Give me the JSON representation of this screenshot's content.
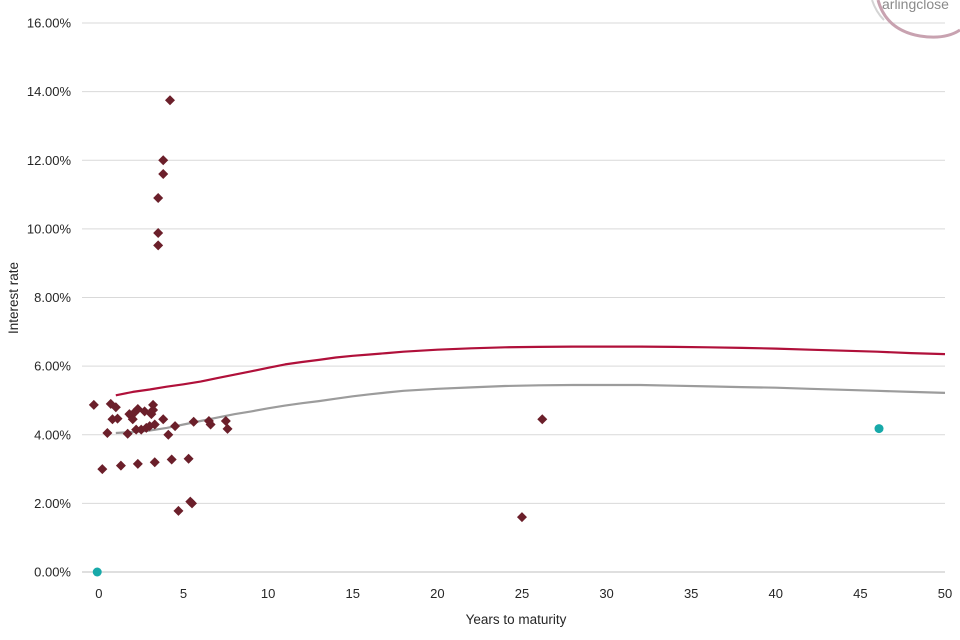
{
  "chart_data": {
    "type": "scatter",
    "xlabel": "Years to maturity",
    "ylabel": "Interest rate",
    "xlim": [
      -1,
      50
    ],
    "ylim": [
      0,
      16
    ],
    "x_ticks": [
      "0",
      "5",
      "10",
      "15",
      "20",
      "25",
      "30",
      "35",
      "40",
      "45",
      "50"
    ],
    "y_ticks": [
      "0.00%",
      "2.00%",
      "4.00%",
      "6.00%",
      "8.00%",
      "10.00%",
      "12.00%",
      "14.00%",
      "16.00%"
    ],
    "grid": "horizontal",
    "logo": "arlingclose",
    "series": [
      {
        "kind": "scatter",
        "marker": "diamond",
        "color": "#6b1f2a",
        "points": [
          [
            -0.3,
            4.87
          ],
          [
            0.2,
            3.0
          ],
          [
            0.5,
            4.05
          ],
          [
            0.7,
            4.9
          ],
          [
            0.8,
            4.45
          ],
          [
            1.0,
            4.8
          ],
          [
            1.1,
            4.47
          ],
          [
            1.3,
            3.1
          ],
          [
            1.7,
            4.03
          ],
          [
            1.8,
            4.6
          ],
          [
            1.9,
            4.55
          ],
          [
            2.0,
            4.45
          ],
          [
            2.1,
            4.65
          ],
          [
            2.2,
            4.15
          ],
          [
            2.3,
            4.75
          ],
          [
            2.3,
            3.15
          ],
          [
            2.5,
            4.15
          ],
          [
            2.7,
            4.68
          ],
          [
            2.8,
            4.2
          ],
          [
            3.0,
            4.25
          ],
          [
            3.1,
            4.6
          ],
          [
            3.2,
            4.72
          ],
          [
            3.2,
            4.87
          ],
          [
            3.3,
            3.2
          ],
          [
            3.3,
            4.3
          ],
          [
            3.5,
            9.52
          ],
          [
            3.5,
            9.88
          ],
          [
            3.5,
            10.9
          ],
          [
            3.8,
            4.45
          ],
          [
            3.8,
            11.6
          ],
          [
            3.8,
            12.0
          ],
          [
            4.1,
            4.0
          ],
          [
            4.2,
            13.75
          ],
          [
            4.3,
            3.28
          ],
          [
            4.5,
            4.25
          ],
          [
            4.7,
            1.78
          ],
          [
            5.3,
            3.3
          ],
          [
            5.4,
            2.05
          ],
          [
            5.5,
            2.0
          ],
          [
            5.6,
            4.38
          ],
          [
            6.5,
            4.4
          ],
          [
            6.6,
            4.3
          ],
          [
            7.5,
            4.4
          ],
          [
            7.6,
            4.17
          ],
          [
            25.0,
            1.6
          ],
          [
            26.2,
            4.45
          ]
        ]
      },
      {
        "kind": "scatter",
        "marker": "circle",
        "color": "#17a9a9",
        "points": [
          [
            -0.1,
            0.0
          ],
          [
            46.1,
            4.18
          ]
        ]
      },
      {
        "kind": "line",
        "color": "#b0103a",
        "points": [
          [
            1,
            5.15
          ],
          [
            2,
            5.25
          ],
          [
            3,
            5.32
          ],
          [
            4,
            5.4
          ],
          [
            5,
            5.47
          ],
          [
            6,
            5.55
          ],
          [
            7,
            5.65
          ],
          [
            8,
            5.75
          ],
          [
            9,
            5.85
          ],
          [
            10,
            5.95
          ],
          [
            11,
            6.05
          ],
          [
            12,
            6.12
          ],
          [
            13,
            6.18
          ],
          [
            14,
            6.25
          ],
          [
            15,
            6.3
          ],
          [
            16,
            6.34
          ],
          [
            17,
            6.38
          ],
          [
            18,
            6.42
          ],
          [
            19,
            6.45
          ],
          [
            20,
            6.48
          ],
          [
            22,
            6.52
          ],
          [
            24,
            6.55
          ],
          [
            26,
            6.56
          ],
          [
            28,
            6.57
          ],
          [
            30,
            6.57
          ],
          [
            32,
            6.57
          ],
          [
            34,
            6.56
          ],
          [
            36,
            6.55
          ],
          [
            38,
            6.53
          ],
          [
            40,
            6.51
          ],
          [
            42,
            6.48
          ],
          [
            44,
            6.45
          ],
          [
            46,
            6.42
          ],
          [
            48,
            6.38
          ],
          [
            50,
            6.35
          ]
        ]
      },
      {
        "kind": "line",
        "color": "#9c9c9c",
        "points": [
          [
            1,
            4.05
          ],
          [
            2,
            4.08
          ],
          [
            3,
            4.12
          ],
          [
            4,
            4.2
          ],
          [
            5,
            4.3
          ],
          [
            6,
            4.4
          ],
          [
            7,
            4.5
          ],
          [
            8,
            4.6
          ],
          [
            9,
            4.68
          ],
          [
            10,
            4.77
          ],
          [
            11,
            4.85
          ],
          [
            12,
            4.92
          ],
          [
            13,
            4.98
          ],
          [
            14,
            5.05
          ],
          [
            15,
            5.12
          ],
          [
            16,
            5.18
          ],
          [
            17,
            5.23
          ],
          [
            18,
            5.28
          ],
          [
            19,
            5.31
          ],
          [
            20,
            5.34
          ],
          [
            22,
            5.38
          ],
          [
            24,
            5.42
          ],
          [
            26,
            5.44
          ],
          [
            28,
            5.45
          ],
          [
            30,
            5.45
          ],
          [
            32,
            5.45
          ],
          [
            34,
            5.43
          ],
          [
            36,
            5.41
          ],
          [
            38,
            5.39
          ],
          [
            40,
            5.37
          ],
          [
            42,
            5.34
          ],
          [
            44,
            5.31
          ],
          [
            46,
            5.28
          ],
          [
            48,
            5.25
          ],
          [
            50,
            5.22
          ]
        ]
      }
    ]
  }
}
